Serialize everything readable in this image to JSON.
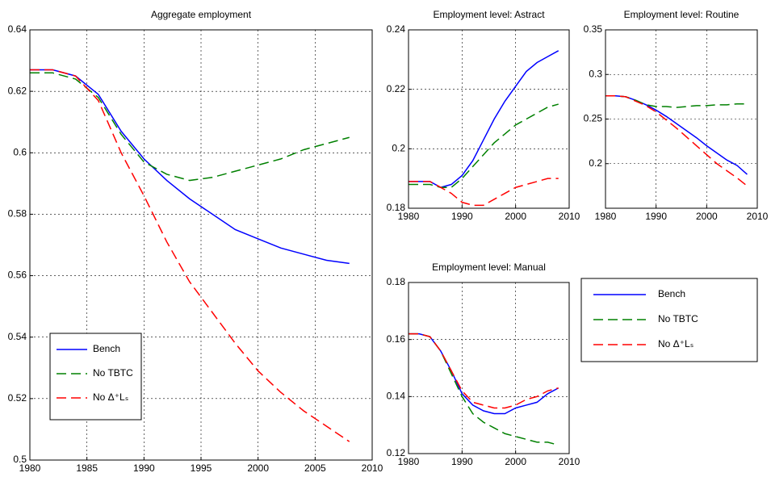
{
  "chart_data": [
    {
      "type": "line",
      "title": "Aggregate employment",
      "x": [
        1980,
        1982,
        1984,
        1986,
        1988,
        1990,
        1992,
        1994,
        1996,
        1998,
        2000,
        2002,
        2004,
        2006,
        2008
      ],
      "series": [
        {
          "name": "Bench",
          "color": "#0000ff",
          "linestyle": "solid",
          "values": [
            0.627,
            0.627,
            0.625,
            0.619,
            0.607,
            0.598,
            0.591,
            0.585,
            0.58,
            0.575,
            0.572,
            0.569,
            0.567,
            0.565,
            0.564
          ]
        },
        {
          "name": "No TBTC",
          "color": "#008000",
          "linestyle": "dashed",
          "values": [
            0.626,
            0.626,
            0.624,
            0.618,
            0.606,
            0.597,
            0.593,
            0.591,
            0.592,
            0.594,
            0.596,
            0.598,
            0.601,
            0.603,
            0.605
          ]
        },
        {
          "name": "No Δ⁺Lₛ",
          "color": "#ff0000",
          "linestyle": "dashed",
          "values": [
            0.627,
            0.627,
            0.625,
            0.617,
            0.6,
            0.586,
            0.571,
            0.558,
            0.548,
            0.538,
            0.529,
            0.522,
            0.516,
            0.511,
            0.506
          ]
        }
      ],
      "xlim": [
        1980,
        2010
      ],
      "xticks": [
        1980,
        1985,
        1990,
        1995,
        2000,
        2005,
        2010
      ],
      "ylim": [
        0.5,
        0.64
      ],
      "yticks": [
        0.5,
        0.52,
        0.54,
        0.56,
        0.58,
        0.6,
        0.62,
        0.64
      ],
      "grid": true,
      "legend": "lower left"
    },
    {
      "type": "line",
      "title": "Employment level: Astract",
      "x": [
        1980,
        1982,
        1984,
        1986,
        1988,
        1990,
        1992,
        1994,
        1996,
        1998,
        2000,
        2002,
        2004,
        2006,
        2008
      ],
      "series": [
        {
          "name": "Bench",
          "color": "#0000ff",
          "linestyle": "solid",
          "values": [
            0.189,
            0.189,
            0.189,
            0.187,
            0.188,
            0.191,
            0.196,
            0.203,
            0.21,
            0.216,
            0.221,
            0.226,
            0.229,
            0.231,
            0.233
          ]
        },
        {
          "name": "No TBTC",
          "color": "#008000",
          "linestyle": "dashed",
          "values": [
            0.188,
            0.188,
            0.188,
            0.187,
            0.187,
            0.19,
            0.194,
            0.198,
            0.202,
            0.205,
            0.208,
            0.21,
            0.212,
            0.214,
            0.215
          ]
        },
        {
          "name": "No Δ⁺Lₛ",
          "color": "#ff0000",
          "linestyle": "dashed",
          "values": [
            0.189,
            0.189,
            0.189,
            0.187,
            0.185,
            0.182,
            0.181,
            0.181,
            0.183,
            0.185,
            0.187,
            0.188,
            0.189,
            0.19,
            0.19
          ]
        }
      ],
      "xlim": [
        1980,
        2010
      ],
      "xticks": [
        1980,
        1990,
        2000,
        2010
      ],
      "ylim": [
        0.18,
        0.24
      ],
      "yticks": [
        0.18,
        0.2,
        0.22,
        0.24
      ],
      "grid": true
    },
    {
      "type": "line",
      "title": "Employment level: Routine",
      "x": [
        1980,
        1982,
        1984,
        1986,
        1988,
        1990,
        1992,
        1994,
        1996,
        1998,
        2000,
        2002,
        2004,
        2006,
        2008
      ],
      "series": [
        {
          "name": "Bench",
          "color": "#0000ff",
          "linestyle": "solid",
          "values": [
            0.276,
            0.276,
            0.275,
            0.271,
            0.266,
            0.26,
            0.253,
            0.245,
            0.237,
            0.229,
            0.22,
            0.212,
            0.204,
            0.198,
            0.188
          ]
        },
        {
          "name": "No TBTC",
          "color": "#008000",
          "linestyle": "dashed",
          "values": [
            0.276,
            0.276,
            0.275,
            0.271,
            0.266,
            0.264,
            0.264,
            0.263,
            0.264,
            0.265,
            0.265,
            0.266,
            0.266,
            0.267,
            0.267
          ]
        },
        {
          "name": "No Δ⁺Lₛ",
          "color": "#ff0000",
          "linestyle": "dashed",
          "values": [
            0.276,
            0.276,
            0.275,
            0.27,
            0.265,
            0.258,
            0.249,
            0.24,
            0.23,
            0.22,
            0.21,
            0.2,
            0.192,
            0.184,
            0.175
          ]
        }
      ],
      "xlim": [
        1980,
        2010
      ],
      "xticks": [
        1980,
        1990,
        2000,
        2010
      ],
      "ylim": [
        0.15,
        0.35
      ],
      "yticks": [
        0.2,
        0.25,
        0.3,
        0.35
      ],
      "grid": true
    },
    {
      "type": "line",
      "title": "Employment level: Manual",
      "x": [
        1980,
        1982,
        1984,
        1986,
        1988,
        1990,
        1992,
        1994,
        1996,
        1998,
        2000,
        2002,
        2004,
        2006,
        2008
      ],
      "series": [
        {
          "name": "Bench",
          "color": "#0000ff",
          "linestyle": "solid",
          "values": [
            0.162,
            0.162,
            0.161,
            0.156,
            0.149,
            0.141,
            0.137,
            0.135,
            0.134,
            0.134,
            0.136,
            0.137,
            0.138,
            0.141,
            0.143
          ]
        },
        {
          "name": "No TBTC",
          "color": "#008000",
          "linestyle": "dashed",
          "values": [
            0.162,
            0.162,
            0.161,
            0.156,
            0.148,
            0.14,
            0.134,
            0.131,
            0.129,
            0.127,
            0.126,
            0.125,
            0.124,
            0.124,
            0.123
          ]
        },
        {
          "name": "No Δ⁺Lₛ",
          "color": "#ff0000",
          "linestyle": "dashed",
          "values": [
            0.162,
            0.162,
            0.161,
            0.156,
            0.149,
            0.142,
            0.138,
            0.137,
            0.136,
            0.136,
            0.137,
            0.139,
            0.14,
            0.142,
            0.143
          ]
        }
      ],
      "xlim": [
        1980,
        2010
      ],
      "xticks": [
        1980,
        1990,
        2000,
        2010
      ],
      "ylim": [
        0.12,
        0.18
      ],
      "yticks": [
        0.12,
        0.14,
        0.16,
        0.18
      ],
      "grid": true,
      "legend": "outside right"
    }
  ]
}
